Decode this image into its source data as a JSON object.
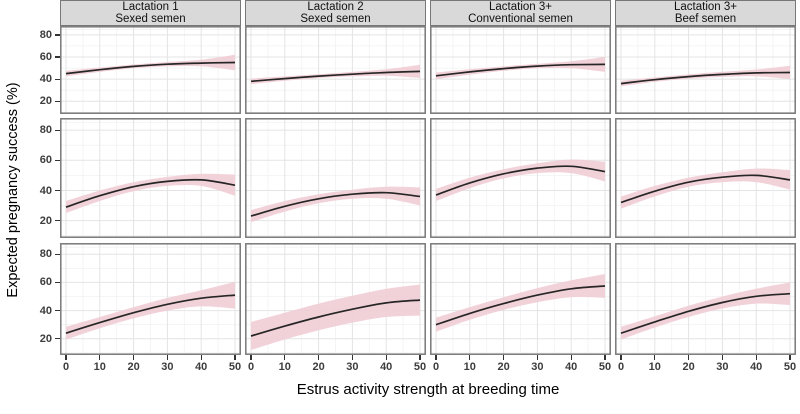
{
  "figure": {
    "x_axis_title": "Estrus activity strength at breeding time",
    "y_axis_title": "Expected pregnancy success (%)"
  },
  "chart_data": {
    "type": "line",
    "layout": "facet_grid 3 rows x 4 columns, ribbon = confidence band",
    "xlabel": "Estrus activity strength at breeding time",
    "ylabel": "Expected pregnancy success (%)",
    "xlim": [
      0,
      50
    ],
    "ylim": [
      8.5,
      88
    ],
    "x_ticks": [
      0,
      10,
      20,
      30,
      40,
      50
    ],
    "y_ticks": [
      20,
      40,
      60,
      80
    ],
    "grid": true,
    "legend": "none",
    "colors": {
      "ribbon": "#f1cdd5",
      "line": "#262626",
      "strip_bg": "#d9d9d9",
      "panel_border": "#787878",
      "grid_major": "#e4e4e4",
      "grid_minor": "#f2f2f2",
      "tick_text": "#3d3d3d"
    },
    "facet_columns": [
      {
        "line1": "Lactation 1",
        "line2": "Sexed semen"
      },
      {
        "line1": "Lactation 2",
        "line2": "Sexed semen"
      },
      {
        "line1": "Lactation 3+",
        "line2": "Conventional semen"
      },
      {
        "line1": "Lactation 3+",
        "line2": "Beef semen"
      }
    ],
    "x": [
      0,
      10,
      20,
      30,
      40,
      50
    ],
    "panels": [
      {
        "row": 1,
        "col": 1,
        "mean": [
          45,
          48.5,
          51.5,
          53.5,
          54.5,
          55
        ],
        "lower": [
          42.5,
          46.5,
          49.8,
          51.5,
          51.5,
          48
        ],
        "upper": [
          47.5,
          50.5,
          53.2,
          55.5,
          57.5,
          62
        ]
      },
      {
        "row": 1,
        "col": 2,
        "mean": [
          38,
          40.5,
          42.7,
          44.5,
          46,
          47
        ],
        "lower": [
          35.5,
          38.5,
          41,
          42.5,
          43,
          41
        ],
        "upper": [
          40.5,
          42.5,
          44.4,
          46.5,
          49,
          53
        ]
      },
      {
        "row": 1,
        "col": 3,
        "mean": [
          43,
          46.5,
          49.5,
          51.8,
          53,
          53.3
        ],
        "lower": [
          40,
          44,
          47.5,
          49.8,
          49.8,
          46.5
        ],
        "upper": [
          46,
          49,
          51.5,
          53.8,
          56.2,
          60
        ]
      },
      {
        "row": 1,
        "col": 4,
        "mean": [
          36,
          39.5,
          42.3,
          44.3,
          45.6,
          46
        ],
        "lower": [
          33.5,
          37.5,
          40.3,
          42,
          42.5,
          40
        ],
        "upper": [
          38.5,
          41.5,
          44.3,
          46.6,
          48.7,
          52
        ]
      },
      {
        "row": 2,
        "col": 1,
        "mean": [
          29,
          36.5,
          42.5,
          46,
          47,
          43.5
        ],
        "lower": [
          25,
          33,
          39.5,
          43,
          43,
          36.5
        ],
        "upper": [
          33,
          40,
          45.5,
          49,
          51,
          50.5
        ]
      },
      {
        "row": 2,
        "col": 2,
        "mean": [
          23,
          29.5,
          34.5,
          37.5,
          38.5,
          36
        ],
        "lower": [
          19,
          26,
          31.5,
          34.5,
          34.5,
          30
        ],
        "upper": [
          27,
          33,
          37.5,
          40.5,
          42.5,
          42
        ]
      },
      {
        "row": 2,
        "col": 3,
        "mean": [
          37,
          45,
          51,
          54.8,
          56,
          52.5
        ],
        "lower": [
          33,
          41.5,
          48,
          51.5,
          51.5,
          46
        ],
        "upper": [
          41,
          48.5,
          54,
          58,
          60.5,
          59
        ]
      },
      {
        "row": 2,
        "col": 4,
        "mean": [
          32,
          39.5,
          45.5,
          48.8,
          50,
          47
        ],
        "lower": [
          28,
          36,
          42.5,
          45.5,
          45.5,
          40.5
        ],
        "upper": [
          36,
          43,
          48.5,
          52,
          54.5,
          53.5
        ]
      },
      {
        "row": 3,
        "col": 1,
        "mean": [
          24,
          31.5,
          38.5,
          44.5,
          48.8,
          51
        ],
        "lower": [
          19.5,
          27.5,
          34.5,
          40,
          43,
          41.5
        ],
        "upper": [
          28.5,
          35.5,
          42.5,
          49,
          54.5,
          60.5
        ]
      },
      {
        "row": 3,
        "col": 2,
        "mean": [
          22,
          29,
          35.5,
          41,
          45.5,
          47.5
        ],
        "lower": [
          12,
          19.5,
          26,
          31.5,
          35.5,
          36.5
        ],
        "upper": [
          32,
          38.5,
          45,
          50.5,
          55.5,
          58.5
        ]
      },
      {
        "row": 3,
        "col": 3,
        "mean": [
          30,
          38,
          45,
          51,
          55.5,
          57.5
        ],
        "lower": [
          25,
          33.5,
          40.5,
          46,
          49.5,
          49
        ],
        "upper": [
          35,
          42.5,
          49.5,
          56,
          61.5,
          66
        ]
      },
      {
        "row": 3,
        "col": 4,
        "mean": [
          24,
          32,
          39.5,
          45.8,
          50.2,
          52
        ],
        "lower": [
          19.5,
          28,
          35.5,
          41.5,
          45,
          44
        ],
        "upper": [
          28.5,
          36,
          43.5,
          50,
          55.5,
          60
        ]
      }
    ]
  }
}
